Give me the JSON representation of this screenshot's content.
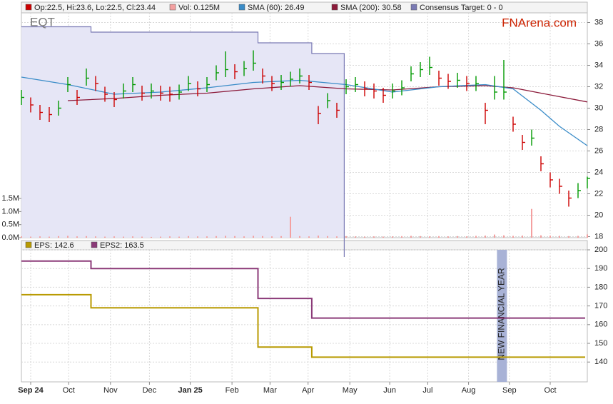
{
  "chart_data": [
    {
      "type": "ohlc",
      "title": "EQT",
      "watermark": "FNArena.com",
      "x": [
        0,
        1,
        2,
        3,
        4,
        5,
        6,
        7,
        8,
        9,
        10,
        11,
        12,
        13,
        14,
        15,
        16,
        17,
        18,
        19,
        20,
        21,
        22,
        23,
        24,
        25,
        26,
        27,
        28,
        29,
        30,
        31,
        32,
        33,
        34,
        35,
        36,
        37,
        38,
        39,
        40,
        41,
        42,
        43,
        44,
        45,
        46,
        47,
        48,
        49,
        50,
        51,
        52,
        53,
        54,
        55,
        56,
        57,
        58,
        59,
        60,
        61
      ],
      "xlim": [
        0,
        61
      ],
      "ylim": [
        17.9,
        38.9
      ],
      "yticks": [
        18,
        20,
        22,
        24,
        26,
        28,
        30,
        32,
        34,
        36,
        38
      ],
      "y2lim": [
        0,
        8.6
      ],
      "y2ticks": [
        {
          "value": 0,
          "label": "0.0M"
        },
        {
          "value": 0.5,
          "label": "0.5M"
        },
        {
          "value": 1,
          "label": "1.0M"
        },
        {
          "value": 1.5,
          "label": "1.5M"
        }
      ],
      "grid": true,
      "series": [
        {
          "type": "ohlc",
          "name": "Op:22.5, Hi:23.6, Lo:22.5, Cl:23.44",
          "color": "#cc0000",
          "up_color": "#009900",
          "high": [
            31.7,
            31.0,
            30.3,
            30.1,
            30.7,
            32.9,
            31.7,
            33.7,
            33.0,
            32.0,
            31.5,
            32.3,
            32.9,
            32.1,
            32.3,
            32.1,
            32.0,
            32.2,
            33.0,
            32.5,
            32.9,
            34.0,
            35.3,
            34.1,
            34.4,
            35.4,
            33.7,
            33.0,
            33.1,
            33.4,
            33.7,
            33.1,
            30.2,
            31.4,
            30.5,
            32.7,
            32.9,
            32.5,
            32.3,
            31.9,
            32.3,
            32.6,
            33.9,
            34.3,
            34.8,
            33.5,
            33.2,
            33.3,
            33.0,
            33.0,
            30.5,
            33.0,
            34.5,
            29.2,
            27.5,
            28.0,
            25.5,
            24.0,
            23.4,
            22.3,
            23.0,
            23.6
          ],
          "low": [
            30.3,
            29.6,
            28.9,
            28.7,
            29.3,
            31.5,
            30.3,
            32.1,
            31.6,
            30.6,
            30.1,
            30.9,
            31.5,
            30.7,
            30.9,
            30.7,
            30.6,
            30.8,
            31.6,
            31.1,
            31.5,
            32.6,
            32.9,
            32.7,
            33.0,
            33.5,
            32.3,
            31.6,
            31.7,
            32.0,
            32.3,
            31.7,
            28.5,
            30.0,
            29.1,
            31.3,
            31.5,
            31.1,
            30.9,
            30.5,
            30.9,
            31.2,
            32.5,
            32.9,
            33.1,
            32.1,
            31.8,
            31.9,
            31.6,
            31.6,
            28.5,
            30.8,
            30.8,
            27.8,
            26.1,
            26.5,
            24.1,
            22.6,
            22.0,
            20.8,
            21.6,
            22.5
          ],
          "close": [
            31.0,
            30.3,
            29.6,
            29.4,
            30.0,
            32.2,
            31.0,
            32.8,
            32.3,
            31.3,
            30.8,
            31.6,
            32.2,
            31.4,
            31.6,
            31.4,
            31.3,
            31.5,
            32.3,
            31.8,
            32.2,
            33.3,
            33.6,
            33.4,
            33.7,
            34.2,
            33.0,
            32.3,
            32.4,
            32.7,
            33.0,
            32.4,
            29.5,
            30.7,
            29.8,
            32.0,
            32.2,
            31.8,
            31.6,
            31.2,
            31.6,
            31.9,
            33.2,
            33.6,
            33.8,
            32.8,
            32.5,
            32.6,
            32.3,
            32.3,
            29.8,
            31.5,
            31.5,
            28.5,
            26.8,
            27.2,
            24.8,
            23.3,
            22.7,
            21.6,
            22.3,
            23.44
          ]
        },
        {
          "type": "volume",
          "name": "Vol: 0.125M",
          "axis": "y2",
          "color": "#f4a0a0",
          "values": [
            0.05,
            0.04,
            0.05,
            0.04,
            0.06,
            0.07,
            0.05,
            0.06,
            0.05,
            0.04,
            0.05,
            0.04,
            0.05,
            0.04,
            0.03,
            0.04,
            0.05,
            0.04,
            0.06,
            0.05,
            0.05,
            0.06,
            0.07,
            0.06,
            0.05,
            0.07,
            0.06,
            0.05,
            0.06,
            0.8,
            0.06,
            0.05,
            0.08,
            0.06,
            0.05,
            0.06,
            0.05,
            0.04,
            0.05,
            0.04,
            0.05,
            0.06,
            0.07,
            0.06,
            0.05,
            0.06,
            0.05,
            0.06,
            0.05,
            0.07,
            0.08,
            0.12,
            0.09,
            0.07,
            0.08,
            1.1,
            0.09,
            0.08,
            0.07,
            0.06,
            0.07,
            0.125
          ]
        },
        {
          "type": "line",
          "name": "SMA (60): 26.49",
          "color": "#3a8cc8",
          "x": [
            0,
            5,
            10,
            15,
            20,
            25,
            30,
            35,
            40,
            45,
            50,
            53,
            56,
            58,
            61
          ],
          "values": [
            32.9,
            32.2,
            31.3,
            31.5,
            31.9,
            32.4,
            32.6,
            32.2,
            31.5,
            32.0,
            32.2,
            31.8,
            29.8,
            28.3,
            26.49
          ]
        },
        {
          "type": "line",
          "name": "SMA (200): 30.58",
          "color": "#8b1a3a",
          "x": [
            5,
            10,
            15,
            20,
            25,
            30,
            35,
            40,
            45,
            50,
            53,
            56,
            61
          ],
          "values": [
            30.7,
            30.9,
            31.2,
            31.4,
            31.8,
            32.1,
            31.8,
            31.7,
            32.0,
            32.1,
            31.9,
            31.4,
            30.58
          ]
        },
        {
          "type": "target",
          "name": "Consensus Target: 0 - 0",
          "color": "#7a7ab4",
          "fill": "#e6e6f6",
          "x": [
            0,
            7.5,
            25.5,
            31.3,
            34.8
          ],
          "values": [
            37.6,
            37.1,
            36.1,
            35.1,
            null
          ]
        }
      ]
    },
    {
      "type": "step",
      "xlim": [
        0,
        61
      ],
      "ylim": [
        129.4,
        200
      ],
      "yticks": [
        140,
        150,
        160,
        170,
        180,
        190,
        200
      ],
      "grid": true,
      "xticks": [
        {
          "value": 1,
          "label": "Sep 24"
        },
        {
          "value": 5.1,
          "label": "Oct"
        },
        {
          "value": 9.6,
          "label": "Nov"
        },
        {
          "value": 13.8,
          "label": "Dec"
        },
        {
          "value": 18.2,
          "label": "Jan 25"
        },
        {
          "value": 22.7,
          "label": "Feb"
        },
        {
          "value": 26.8,
          "label": "Mar"
        },
        {
          "value": 30.9,
          "label": "Apr"
        },
        {
          "value": 35.4,
          "label": "May"
        },
        {
          "value": 39.7,
          "label": "Jun"
        },
        {
          "value": 43.8,
          "label": "Jul"
        },
        {
          "value": 48.2,
          "label": "Aug"
        },
        {
          "value": 52.6,
          "label": "Sep"
        },
        {
          "value": 57,
          "label": "Oct"
        }
      ],
      "annotation": {
        "text": "NEW FINANCIAL YEAR",
        "x": 51.8
      },
      "series": [
        {
          "name": "EPS: 142.6",
          "color": "#b89a00",
          "x": [
            0,
            7.5,
            25.5,
            31.3
          ],
          "values": [
            176,
            169,
            148,
            142.6
          ]
        },
        {
          "name": "EPS2: 163.5",
          "color": "#8b3a78",
          "x": [
            0,
            7.5,
            25.5,
            31.3
          ],
          "values": [
            194,
            190,
            174,
            163.5
          ]
        }
      ]
    }
  ]
}
